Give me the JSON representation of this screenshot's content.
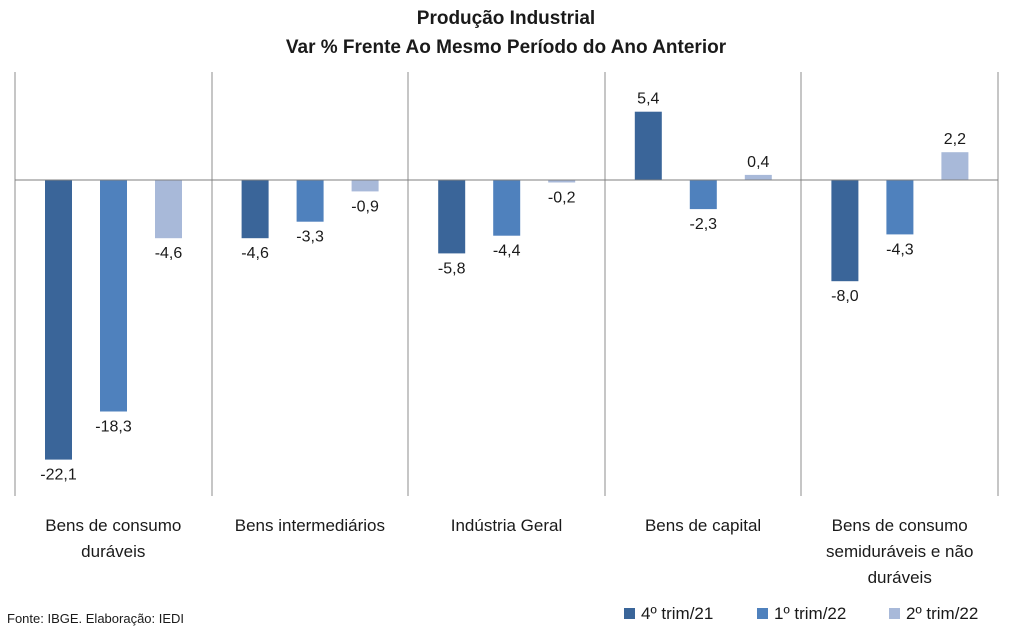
{
  "source_note": "Fonte: IBGE. Elaboração: IEDI",
  "chart_data": {
    "type": "bar",
    "title": "Produção Industrial",
    "subtitle": "Var % Frente Ao Mesmo Período do Ano Anterior",
    "categories": [
      [
        "Bens de consumo",
        "duráveis"
      ],
      [
        "Bens intermediários"
      ],
      [
        "Indústria Geral"
      ],
      [
        "Bens de capital"
      ],
      [
        "Bens de consumo",
        "semiduráveis e não",
        "duráveis"
      ]
    ],
    "series": [
      {
        "name": "4º trim/21",
        "color": "#3a6599",
        "values": [
          -22.1,
          -4.6,
          -5.8,
          5.4,
          -8.0
        ],
        "labels": [
          "-22,1",
          "-4,6",
          "-5,8",
          "5,4",
          "-8,0"
        ]
      },
      {
        "name": "1º trim/22",
        "color": "#4f81bd",
        "values": [
          -18.3,
          -3.3,
          -4.4,
          -2.3,
          -4.3
        ],
        "labels": [
          "-18,3",
          "-3,3",
          "-4,4",
          "-2,3",
          "-4,3"
        ]
      },
      {
        "name": "2º trim/22",
        "color": "#a8b9d9",
        "values": [
          -4.6,
          -0.9,
          -0.2,
          0.4,
          2.2
        ],
        "labels": [
          "-4,6",
          "-0,9",
          "-0,2",
          "0,4",
          "2,2"
        ]
      }
    ],
    "ylim": [
      -24,
      8
    ],
    "legend_position": "bottom-right",
    "grid": false
  }
}
